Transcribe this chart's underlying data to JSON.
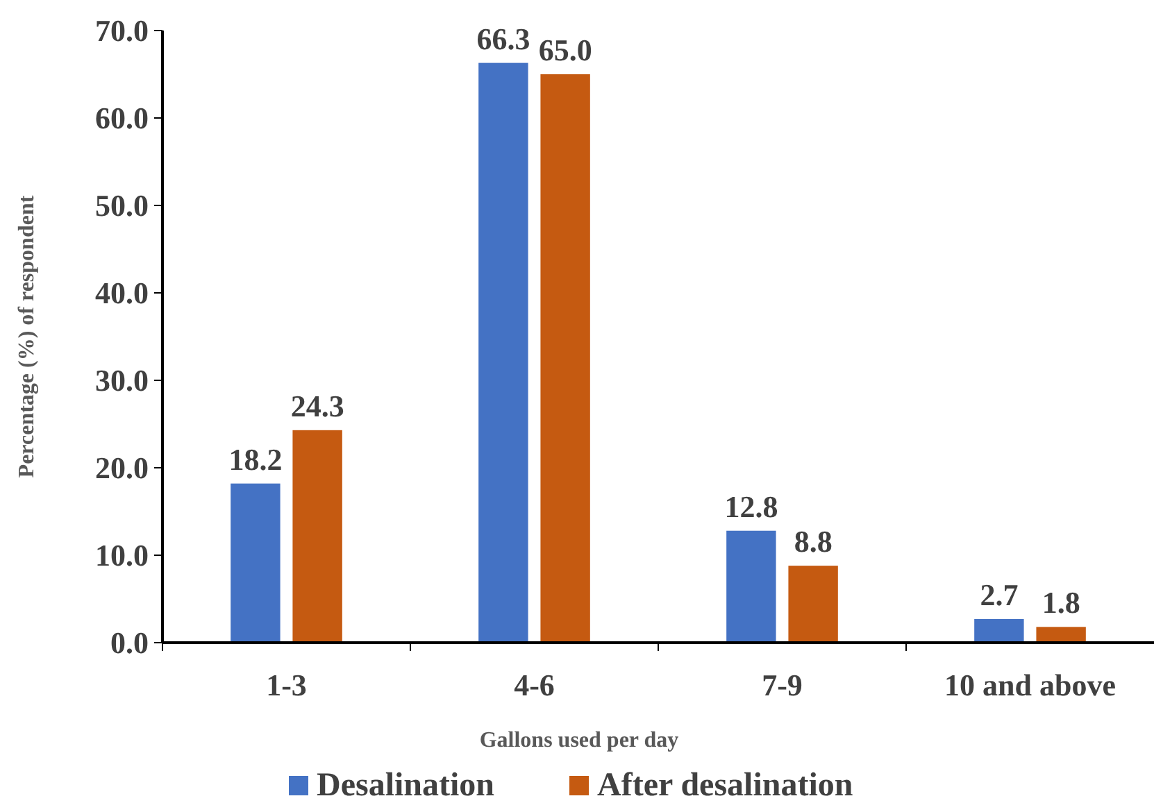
{
  "chart_data": {
    "type": "bar",
    "xlabel": "Gallons used per day",
    "ylabel": "Percentage (%) of respondent",
    "categories": [
      "1-3",
      "4-6",
      "7-9",
      "10 and above"
    ],
    "series": [
      {
        "name": "Desalination",
        "color": "#4472c4",
        "values": [
          18.2,
          66.3,
          12.8,
          2.7
        ],
        "value_labels": [
          "18.2",
          "66.3",
          "12.8",
          "2.7"
        ]
      },
      {
        "name": "After desalination",
        "color": "#c55a11",
        "values": [
          24.3,
          65.0,
          8.8,
          1.8
        ],
        "value_labels": [
          "24.3",
          "65.0",
          "8.8",
          "1.8"
        ]
      }
    ],
    "ylim": [
      0,
      70
    ],
    "yticks": [
      {
        "value": 0,
        "label": "0.0"
      },
      {
        "value": 10,
        "label": "10.0"
      },
      {
        "value": 20,
        "label": "20.0"
      },
      {
        "value": 30,
        "label": "30.0"
      },
      {
        "value": 40,
        "label": "40.0"
      },
      {
        "value": 50,
        "label": "50.0"
      },
      {
        "value": 60,
        "label": "60.0"
      },
      {
        "value": 70,
        "label": "70.0"
      }
    ],
    "grid": false,
    "legend": "bottom"
  }
}
